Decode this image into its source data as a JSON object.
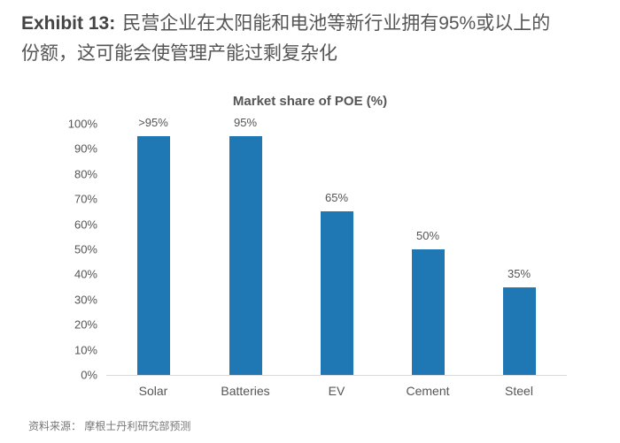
{
  "header": {
    "prefix": "Exhibit 13:",
    "line1": "民营企业在太阳能和电池等新行业拥有95%或以上的",
    "line2": "份额，这可能会使管理产能过剩复杂化"
  },
  "source": "资料来源： 摩根士丹利研究部预测",
  "colors": {
    "bar": "#1f77b4",
    "axis": "#d9d9d9",
    "text": "#555555"
  },
  "chart_data": {
    "type": "bar",
    "title": "Market share of POE (%)",
    "xlabel": "",
    "ylabel": "",
    "categories": [
      "Solar",
      "Batteries",
      "EV",
      "Cement",
      "Steel"
    ],
    "values": [
      95,
      95,
      65,
      50,
      35
    ],
    "value_labels": [
      ">95%",
      "95%",
      "65%",
      "50%",
      "35%"
    ],
    "yticks": [
      "0%",
      "10%",
      "20%",
      "30%",
      "40%",
      "50%",
      "60%",
      "70%",
      "80%",
      "90%",
      "100%"
    ],
    "ylim": [
      0,
      100
    ],
    "grid": false,
    "legend": null
  }
}
